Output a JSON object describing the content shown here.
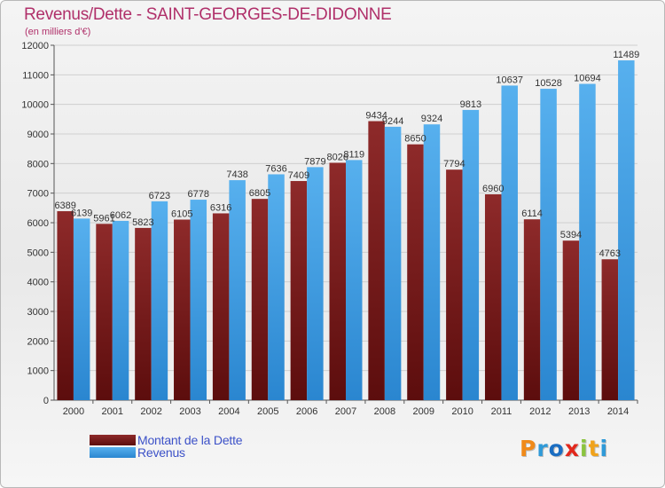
{
  "header": {
    "title": "Revenus/Dette - SAINT-GEORGES-DE-DIDONNE",
    "subtitle": "(en milliers d'€)"
  },
  "legend": {
    "items": [
      {
        "label": "Montant de la Dette",
        "color": "#7a1c1c"
      },
      {
        "label": "Revenus",
        "color": "#3d9de6"
      }
    ]
  },
  "logo": {
    "letters": [
      "P",
      "r",
      "o",
      "x",
      "i",
      "t",
      "i"
    ],
    "colors": [
      "#f08a1a",
      "#2f9ad8",
      "#1b6ec2",
      "#e2281c",
      "#8bc43f",
      "#f0a21a",
      "#2f9ad8"
    ]
  },
  "chart_data": {
    "type": "bar",
    "title": "Revenus/Dette - SAINT-GEORGES-DE-DIDONNE",
    "subtitle": "(en milliers d'€)",
    "categories": [
      "2000",
      "2001",
      "2002",
      "2003",
      "2004",
      "2005",
      "2006",
      "2007",
      "2008",
      "2009",
      "2010",
      "2011",
      "2012",
      "2013",
      "2014"
    ],
    "series": [
      {
        "name": "Montant de la Dette",
        "color": "#7a1c1c",
        "values": [
          6389,
          5961,
          5823,
          6105,
          6316,
          6805,
          7409,
          8026,
          9434,
          8650,
          7794,
          6960,
          6114,
          5394,
          4763
        ],
        "labels": [
          "6389",
          "5961",
          "5823",
          "6105",
          "6316",
          "6805",
          "7409",
          "8026",
          "9434",
          "8650",
          "7794",
          "6960",
          "6114",
          "5394",
          "4763"
        ]
      },
      {
        "name": "Revenus",
        "color": "#3d9de6",
        "values": [
          6139,
          6062,
          6723,
          6778,
          7438,
          7636,
          7879,
          8119,
          9244,
          9324,
          9813,
          10637,
          10528,
          10694,
          11489
        ],
        "labels": [
          "6139",
          "6062",
          "6723",
          "6778",
          "7438",
          "7636",
          "7879",
          "8119",
          "9244",
          "9324",
          "9813",
          "10637",
          "10528",
          "10694",
          "11489"
        ]
      }
    ],
    "yticks": [
      0,
      1000,
      2000,
      3000,
      4000,
      5000,
      6000,
      7000,
      8000,
      9000,
      10000,
      11000,
      12000
    ],
    "ylim": [
      0,
      12000
    ],
    "grid": true,
    "legend_position": "bottom-left"
  }
}
